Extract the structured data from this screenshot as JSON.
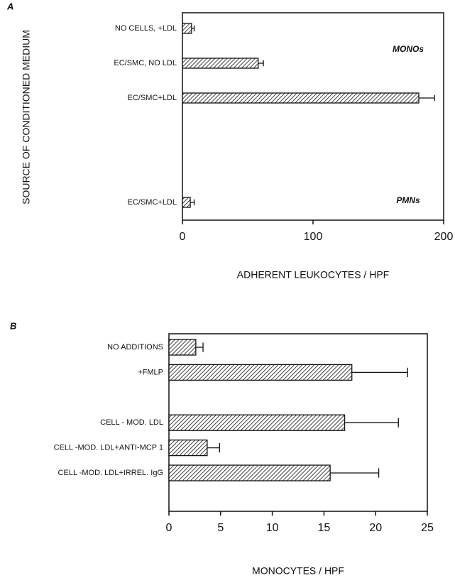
{
  "chart_data": [
    {
      "type": "bar",
      "orientation": "horizontal",
      "panel": "A",
      "y_label": "SOURCE OF CONDITIONED MEDIUM",
      "x_label": "ADHERENT LEUKOCYTES / HPF",
      "annotations": [
        "MONOs",
        "PMNs"
      ],
      "categories": [
        "NO CELLS, +LDL",
        "EC/SMC, NO LDL",
        "EC/SMC+LDL",
        null,
        null,
        "EC/SMC+LDL"
      ],
      "values": [
        7,
        58,
        181,
        null,
        null,
        6
      ],
      "errors": [
        2,
        4,
        12,
        null,
        null,
        3
      ],
      "xlim": [
        0,
        200
      ],
      "xticks": [
        0,
        100,
        200
      ]
    },
    {
      "type": "bar",
      "orientation": "horizontal",
      "panel": "B",
      "x_label": "MONOCYTES / HPF",
      "categories": [
        "NO ADDITIONS",
        "+FMLP",
        null,
        "CELL - MOD. LDL",
        "CELL -MOD. LDL+ANTI-MCP 1",
        "CELL -MOD. LDL+IRREL. IgG"
      ],
      "values": [
        2.6,
        17.7,
        null,
        17,
        3.7,
        15.6
      ],
      "errors": [
        0.7,
        5.4,
        null,
        5.2,
        1.2,
        4.7
      ],
      "xlim": [
        0,
        25
      ],
      "xticks": [
        0,
        5,
        10,
        15,
        20,
        25
      ]
    }
  ]
}
